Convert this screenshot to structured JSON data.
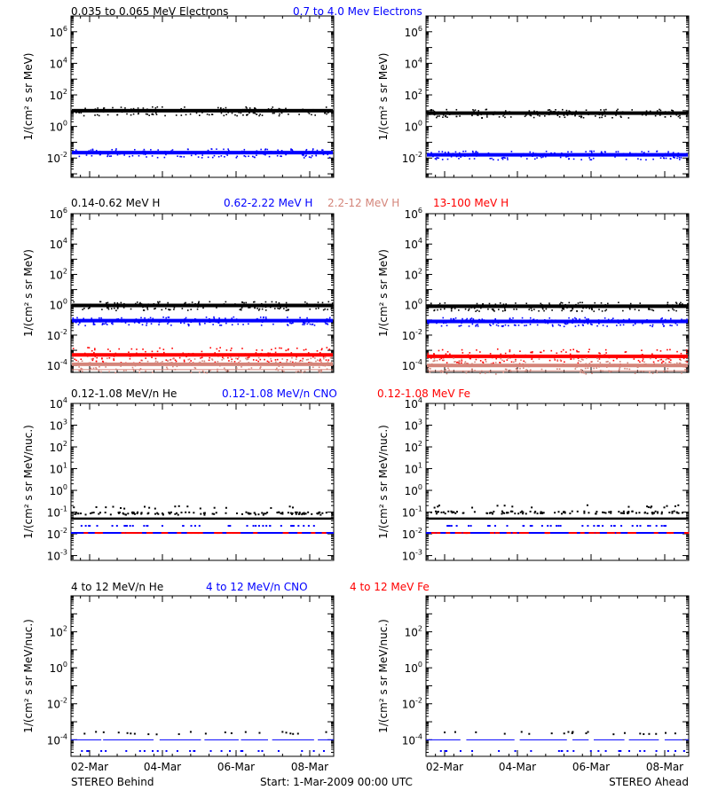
{
  "colors": {
    "black": "#000000",
    "blue": "#0000ff",
    "red": "#ff0000",
    "salmon": "#d4857a"
  },
  "footer": {
    "left": "STEREO Behind",
    "center": "Start:  1-Mar-2009 00:00 UTC",
    "right": "STEREO Ahead"
  },
  "x_ticks": [
    "02-Mar",
    "04-Mar",
    "06-Mar",
    "08-Mar"
  ],
  "chart_data": [
    {
      "type": "scatter",
      "titles": [
        {
          "text": "0.035 to 0.065 MeV Electrons",
          "color": "black"
        },
        {
          "text": "0.7 to 4.0 Mev Electrons",
          "color": "blue"
        }
      ],
      "ylabel": "1/(cm² s sr MeV)",
      "yscale": "log",
      "ylim": [
        0.0006,
        10000000
      ],
      "ytick_exps": [
        -2,
        0,
        2,
        4,
        6
      ],
      "xlim_days": [
        1,
        8.5
      ],
      "panels": [
        {
          "name": "STEREO Behind",
          "series": [
            {
              "name": "0.035 to 0.065 MeV Electrons",
              "color": "black",
              "level": 10
            },
            {
              "name": "0.7 to 4.0 Mev Electrons",
              "color": "blue",
              "level": 0.022
            }
          ]
        },
        {
          "name": "STEREO Ahead",
          "series": [
            {
              "name": "0.035 to 0.065 MeV Electrons",
              "color": "black",
              "level": 7
            },
            {
              "name": "0.7 to 4.0 Mev Electrons",
              "color": "blue",
              "level": 0.016
            }
          ]
        }
      ]
    },
    {
      "type": "scatter",
      "titles": [
        {
          "text": "0.14-0.62 MeV H",
          "color": "black"
        },
        {
          "text": "0.62-2.22 MeV H",
          "color": "blue"
        },
        {
          "text": "2.2-12 MeV H",
          "color": "salmon"
        },
        {
          "text": "13-100 MeV H",
          "color": "red"
        }
      ],
      "ylabel": "1/(cm² s sr MeV)",
      "yscale": "log",
      "ylim": [
        3.5e-05,
        1000000
      ],
      "ytick_exps": [
        -4,
        -2,
        0,
        2,
        4,
        6
      ],
      "xlim_days": [
        1,
        8.5
      ],
      "panels": [
        {
          "name": "STEREO Behind",
          "series": [
            {
              "name": "0.14-0.62 MeV H",
              "color": "black",
              "level": 0.9
            },
            {
              "name": "0.62-2.22 MeV H",
              "color": "blue",
              "level": 0.09
            },
            {
              "name": "13-100 MeV H",
              "color": "red",
              "level": 0.0005
            },
            {
              "name": "2.2-12 MeV H",
              "color": "salmon",
              "level": 0.00012
            }
          ]
        },
        {
          "name": "STEREO Ahead",
          "series": [
            {
              "name": "0.14-0.62 MeV H",
              "color": "black",
              "level": 0.8
            },
            {
              "name": "0.62-2.22 MeV H",
              "color": "blue",
              "level": 0.08
            },
            {
              "name": "13-100 MeV H",
              "color": "red",
              "level": 0.0004
            },
            {
              "name": "2.2-12 MeV H",
              "color": "salmon",
              "level": 0.0001
            }
          ]
        }
      ]
    },
    {
      "type": "scatter",
      "titles": [
        {
          "text": "0.12-1.08 MeV/n He",
          "color": "black"
        },
        {
          "text": "0.12-1.08 MeV/n CNO",
          "color": "blue"
        },
        {
          "text": "0.12-1.08 MeV Fe",
          "color": "red"
        }
      ],
      "ylabel": "1/(cm² s sr MeV/nuc.)",
      "yscale": "log",
      "ylim": [
        0.0006,
        10000
      ],
      "ytick_exps": [
        -3,
        -2,
        -1,
        0,
        1,
        2,
        3,
        4
      ],
      "xlim_days": [
        1,
        8.5
      ],
      "panels": [
        {
          "name": "STEREO Behind",
          "series": [
            {
              "name": "0.12-1.08 MeV/n He",
              "color": "black",
              "level": 0.09
            },
            {
              "name": "0.12-1.08 MeV/n CNO",
              "color": "blue",
              "level": 0.011
            },
            {
              "name": "0.12-1.08 MeV Fe",
              "color": "red",
              "level": 0.011
            }
          ]
        },
        {
          "name": "STEREO Ahead",
          "series": [
            {
              "name": "0.12-1.08 MeV/n He",
              "color": "black",
              "level": 0.1
            },
            {
              "name": "0.12-1.08 MeV/n CNO",
              "color": "blue",
              "level": 0.011
            },
            {
              "name": "0.12-1.08 MeV Fe",
              "color": "red",
              "level": 0.011
            }
          ]
        }
      ]
    },
    {
      "type": "scatter",
      "titles": [
        {
          "text": "4 to 12 MeV/n He",
          "color": "black"
        },
        {
          "text": "4 to 12 MeV/n CNO",
          "color": "blue"
        },
        {
          "text": "4 to 12 MeV Fe",
          "color": "red"
        }
      ],
      "ylabel": "1/(cm² s sr MeV/nuc.)",
      "yscale": "log",
      "ylim": [
        1.2e-05,
        10000
      ],
      "ytick_exps": [
        -4,
        -2,
        0,
        2
      ],
      "xlim_days": [
        1,
        8.5
      ],
      "panels": [
        {
          "name": "STEREO Behind",
          "series": [
            {
              "name": "4 to 12 MeV/n He",
              "color": "black",
              "level": 0.0001
            },
            {
              "name": "4 to 12 MeV/n CNO",
              "color": "blue",
              "level": 0.0001
            }
          ]
        },
        {
          "name": "STEREO Ahead",
          "series": [
            {
              "name": "4 to 12 MeV/n He",
              "color": "black",
              "level": 0.0001
            },
            {
              "name": "4 to 12 MeV/n CNO",
              "color": "blue",
              "level": 0.0001
            }
          ]
        }
      ]
    }
  ]
}
